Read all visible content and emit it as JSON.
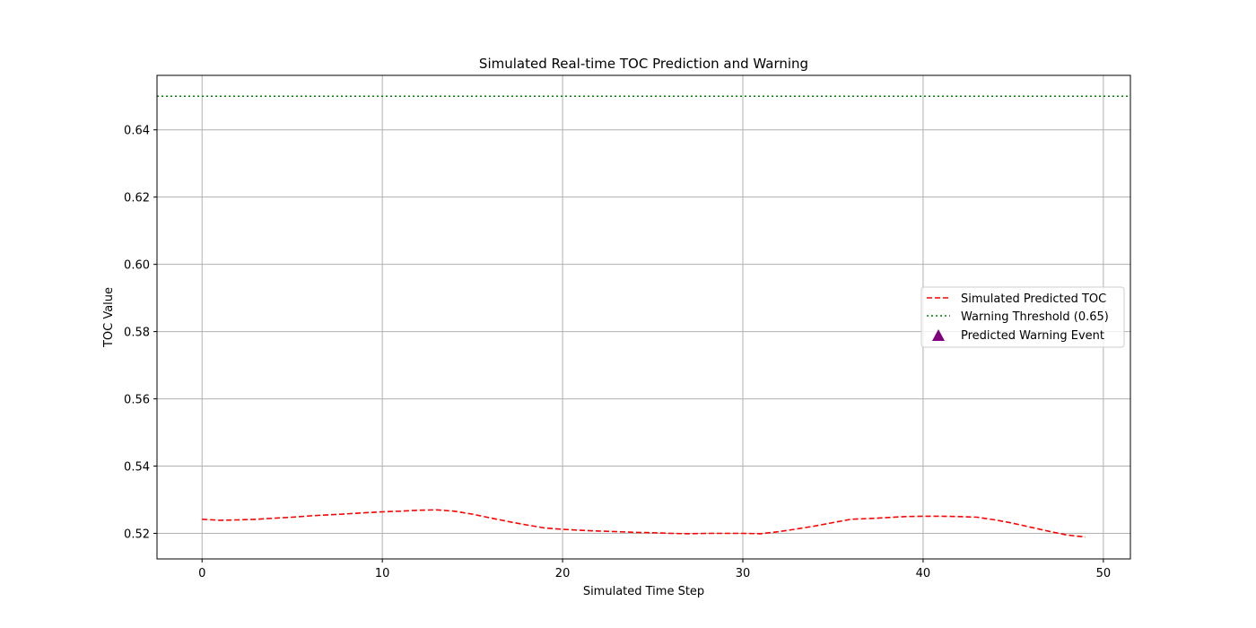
{
  "chart_data": {
    "type": "line",
    "title": "Simulated Real-time TOC Prediction and Warning",
    "xlabel": "Simulated Time Step",
    "ylabel": "TOC Value",
    "xlim": [
      -2.5,
      51.5
    ],
    "ylim": [
      0.5124,
      0.6562
    ],
    "xticks": [
      0,
      10,
      20,
      30,
      40,
      50
    ],
    "yticks": [
      0.52,
      0.54,
      0.56,
      0.58,
      0.6,
      0.62,
      0.64
    ],
    "ytick_labels": [
      "0.52",
      "0.54",
      "0.56",
      "0.58",
      "0.60",
      "0.62",
      "0.64"
    ],
    "grid": true,
    "legend_position": "center-right",
    "series": [
      {
        "name": "Simulated Predicted TOC",
        "style": "dashed",
        "color": "#ff0000",
        "x": [
          0,
          1,
          2,
          3,
          4,
          5,
          6,
          7,
          8,
          9,
          10,
          11,
          12,
          13,
          14,
          15,
          16,
          17,
          18,
          19,
          20,
          21,
          22,
          23,
          24,
          25,
          26,
          27,
          28,
          29,
          30,
          31,
          32,
          33,
          34,
          35,
          36,
          37,
          38,
          39,
          40,
          41,
          42,
          43,
          44,
          45,
          46,
          47,
          48,
          49
        ],
        "values": [
          0.5242,
          0.5239,
          0.524,
          0.5242,
          0.5245,
          0.5248,
          0.5252,
          0.5255,
          0.5258,
          0.5261,
          0.5264,
          0.5266,
          0.5269,
          0.527,
          0.5266,
          0.5257,
          0.5246,
          0.5235,
          0.5225,
          0.5216,
          0.5212,
          0.5209,
          0.5207,
          0.5205,
          0.5203,
          0.5202,
          0.52,
          0.5199,
          0.52,
          0.52,
          0.52,
          0.5199,
          0.5205,
          0.5213,
          0.5222,
          0.5232,
          0.5242,
          0.5244,
          0.5247,
          0.525,
          0.5251,
          0.5251,
          0.525,
          0.5248,
          0.524,
          0.523,
          0.5218,
          0.5206,
          0.5195,
          0.5189
        ]
      },
      {
        "name": "Warning Threshold (0.65)",
        "style": "dotted",
        "color": "#008000",
        "value": 0.65
      },
      {
        "name": "Predicted Warning Event",
        "style": "marker-triangle",
        "color": "#800080",
        "x": [],
        "values": []
      }
    ]
  }
}
